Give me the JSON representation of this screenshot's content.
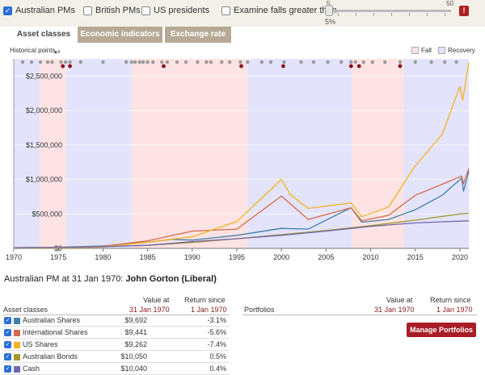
{
  "top_bar": {
    "options": [
      {
        "label": "Australian PMs",
        "checked": true
      },
      {
        "label": "British PMs",
        "checked": false
      },
      {
        "label": "US presidents",
        "checked": false
      },
      {
        "label": "Examine falls greater than",
        "checked": false
      }
    ],
    "slider": {
      "min_label": "5",
      "max_label": "50",
      "value_label": "5%"
    },
    "alert_label": "!"
  },
  "tabs": [
    "Asset classes",
    "Economic indicators",
    "Exchange rate"
  ],
  "subheader": {
    "historical_points": "Historical points",
    "legend_fall": "Fall",
    "legend_recovery": "Recovery",
    "fall_color": "#fde3e3",
    "recovery_color": "#e3e3fb"
  },
  "chart_data": {
    "type": "line",
    "x_ticks": [
      "1970",
      "1975",
      "1980",
      "1985",
      "1990",
      "1995",
      "2000",
      "2005",
      "2010",
      "2015",
      "2020"
    ],
    "y_ticks": [
      "$0",
      "$500,000",
      "$1,000,000",
      "$1,500,000",
      "$2,000,000",
      "$2,500,000"
    ],
    "xlim": [
      1970,
      2021
    ],
    "ylim": [
      0,
      2750000
    ],
    "bands": [
      {
        "start": 1970.0,
        "end": 1972.9,
        "type": "recovery"
      },
      {
        "start": 1972.9,
        "end": 1975.9,
        "type": "fall"
      },
      {
        "start": 1975.9,
        "end": 1983.2,
        "type": "recovery"
      },
      {
        "start": 1983.2,
        "end": 1996.2,
        "type": "fall"
      },
      {
        "start": 1996.2,
        "end": 2007.9,
        "type": "recovery"
      },
      {
        "start": 2007.9,
        "end": 2013.7,
        "type": "fall"
      },
      {
        "start": 2013.7,
        "end": 2021.0,
        "type": "recovery"
      }
    ],
    "historical_points": [
      1971.0,
      1972.0,
      1973.0,
      1973.8,
      1974.3,
      1975.3,
      1975.8,
      1976.3,
      1977.5,
      1980.0,
      1982.6,
      1983.2,
      1983.6,
      1984.1,
      1984.5,
      1985.0,
      1985.6,
      1986.6,
      1987.2,
      1988.3,
      1989.3,
      1990.6,
      1991.6,
      1992.1,
      1993.3,
      1994.2,
      1995.4,
      1996.2,
      1997.8,
      1998.8,
      2000.3,
      2002.2,
      2003.6,
      2005.2,
      2006.7,
      2007.8,
      2008.3,
      2009.2,
      2010.2,
      2011.6,
      2013.3,
      2015.0,
      2016.8,
      2018.3,
      2019.6
    ],
    "highlight_points": [
      1975.5,
      1976.3,
      1986.8,
      1995.5,
      2000.2,
      2007.8,
      2008.7,
      2013.3
    ],
    "series": [
      {
        "name": "Australian Shares",
        "color": "#3f7fad",
        "x": [
          1970,
          1975,
          1980,
          1985,
          1987.7,
          1990,
          1995,
          2000,
          2003,
          2007.8,
          2009,
          2012,
          2015,
          2018,
          2020.2,
          2020.4,
          2021
        ],
        "y": [
          10000,
          15000,
          35000,
          90000,
          130000,
          120000,
          190000,
          290000,
          280000,
          590000,
          380000,
          420000,
          560000,
          770000,
          1020000,
          830000,
          1120000
        ]
      },
      {
        "name": "International Shares",
        "color": "#d46a4b",
        "x": [
          1970,
          1975,
          1980,
          1985,
          1990,
          1995,
          2000,
          2003,
          2007.8,
          2009,
          2012,
          2015,
          2018,
          2020.2,
          2020.4,
          2021
        ],
        "y": [
          10000,
          9000,
          30000,
          110000,
          250000,
          280000,
          760000,
          420000,
          590000,
          400000,
          480000,
          770000,
          930000,
          1050000,
          940000,
          1160000
        ]
      },
      {
        "name": "US Shares",
        "color": "#f2b320",
        "x": [
          1970,
          1975,
          1980,
          1985,
          1990,
          1995,
          2000,
          2001,
          2003,
          2007.8,
          2009,
          2012,
          2015,
          2018,
          2020,
          2020.3,
          2021
        ],
        "y": [
          10000,
          8000,
          20000,
          90000,
          170000,
          390000,
          1000000,
          780000,
          580000,
          660000,
          460000,
          600000,
          1200000,
          1650000,
          2350000,
          2150000,
          2700000
        ]
      },
      {
        "name": "Australian Bonds",
        "color": "#a29a2e",
        "x": [
          1970,
          1975,
          1980,
          1985,
          1990,
          1995,
          2000,
          2005,
          2010,
          2015,
          2020,
          2021
        ],
        "y": [
          10000,
          14000,
          24000,
          44000,
          85000,
          140000,
          200000,
          260000,
          330000,
          410000,
          500000,
          510000
        ]
      },
      {
        "name": "Cash",
        "color": "#7268b0",
        "x": [
          1970,
          1975,
          1980,
          1985,
          1990,
          1995,
          2000,
          2005,
          2010,
          2015,
          2020,
          2021
        ],
        "y": [
          10000,
          15000,
          25000,
          45000,
          100000,
          140000,
          190000,
          250000,
          320000,
          370000,
          395000,
          400000
        ]
      }
    ]
  },
  "pm_heading": {
    "prefix": "Australian PM at 31 Jan 1970:",
    "name": "John Gorton (Liberal)"
  },
  "asset_table": {
    "title": "Asset classes",
    "value_header": "Value at",
    "value_date": "31 Jan 1970",
    "return_header": "Return since",
    "return_date": "1 Jan 1970",
    "rows": [
      {
        "name": "Australian Shares",
        "color": "#3f7fad",
        "value": "$9,692",
        "return": "-3.1%"
      },
      {
        "name": "International Shares",
        "color": "#d46a4b",
        "value": "$9,441",
        "return": "-5.6%"
      },
      {
        "name": "US Shares",
        "color": "#f2b320",
        "value": "$9,262",
        "return": "-7.4%"
      },
      {
        "name": "Australian Bonds",
        "color": "#a29a2e",
        "value": "$10,050",
        "return": "0.5%"
      },
      {
        "name": "Cash",
        "color": "#7268b0",
        "value": "$10,040",
        "return": "0.4%"
      }
    ]
  },
  "portfolio_table": {
    "title": "Portfolios",
    "value_header": "Value at",
    "value_date": "31 Jan 1970",
    "return_header": "Return since",
    "return_date": "1 Jan 1970",
    "manage_label": "Manage Portfolios"
  }
}
